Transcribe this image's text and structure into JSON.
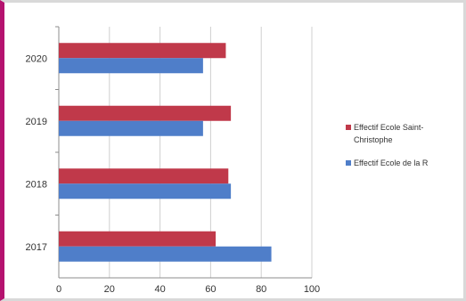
{
  "chart_data": {
    "type": "bar",
    "orientation": "horizontal",
    "categories": [
      "2017",
      "2018",
      "2019",
      "2020"
    ],
    "series": [
      {
        "name": "Effectif Ecole de la R",
        "color": "#4f7ec9",
        "values": [
          84,
          68,
          57,
          57
        ]
      },
      {
        "name": "Effectif Ecole Saint-Christophe",
        "color": "#c0394a",
        "values": [
          62,
          67,
          68,
          66
        ]
      }
    ],
    "xticks": [
      "0",
      "20",
      "40",
      "60",
      "80",
      "100"
    ],
    "xlim": [
      0,
      100
    ],
    "grid": true,
    "legend_position": "right",
    "legend": [
      {
        "lines": [
          "Effectif Ecole Saint-",
          "Christophe"
        ],
        "color": "#c0394a"
      },
      {
        "lines": [
          "Effectif Ecole de la R"
        ],
        "color": "#4f7ec9"
      }
    ],
    "title": "",
    "xlabel": "",
    "ylabel": ""
  }
}
